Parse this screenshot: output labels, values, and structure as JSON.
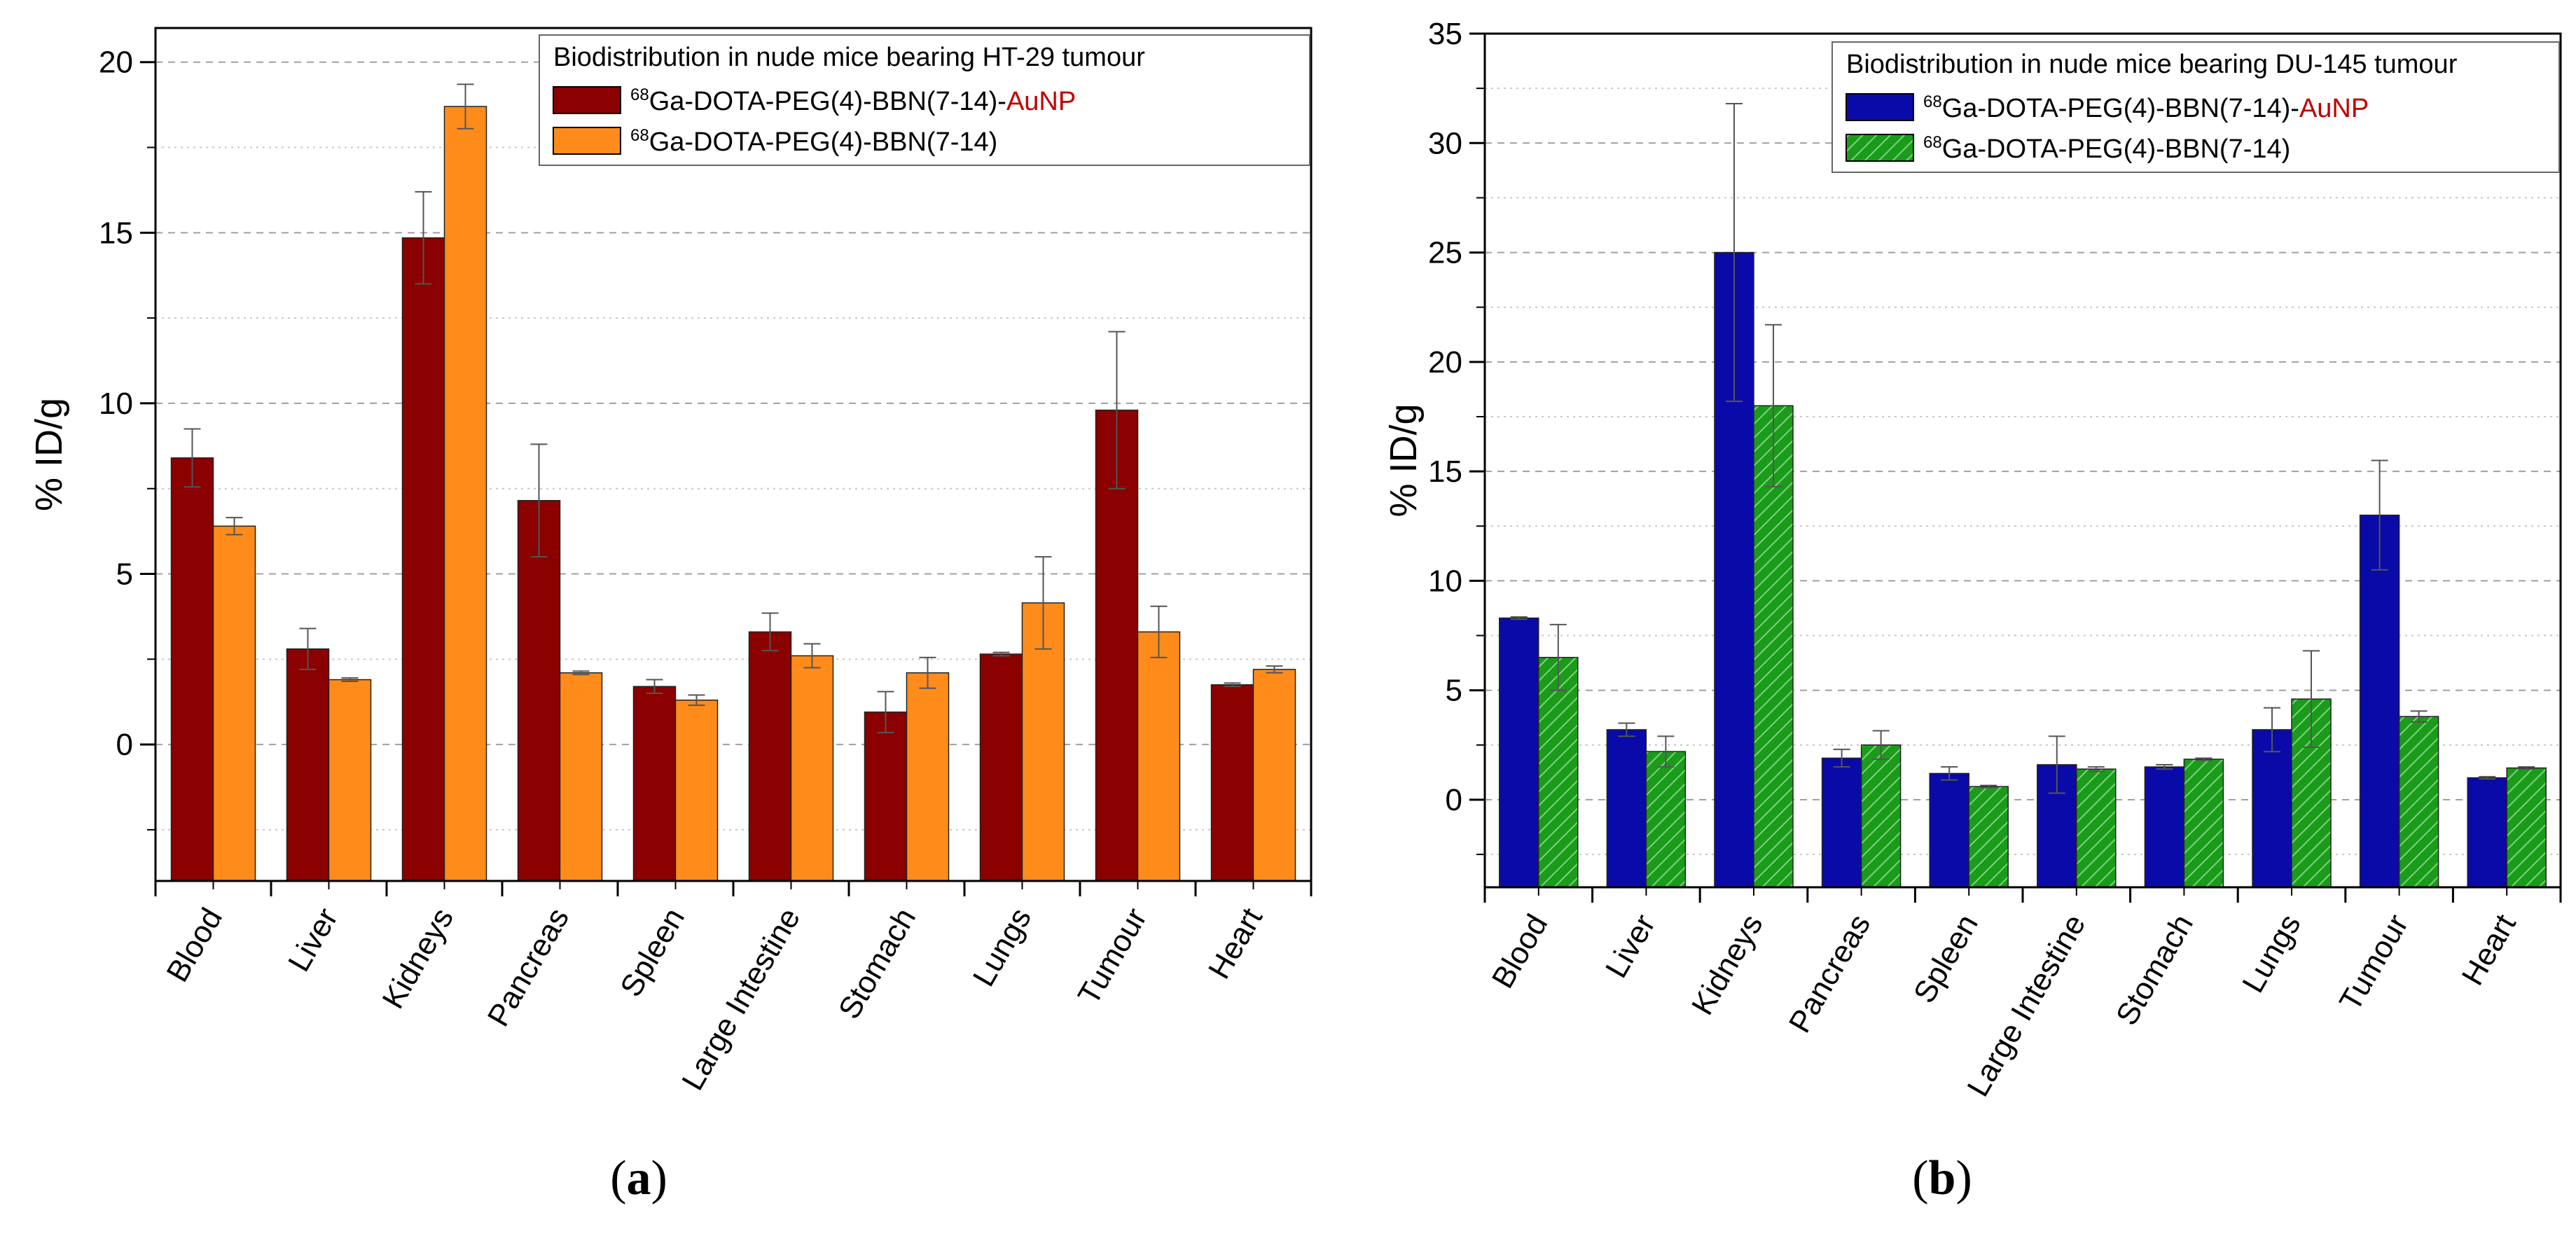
{
  "chart_data": [
    {
      "type": "bar",
      "panel_label": "a",
      "title": "Biodistribution in nude mice bearing HT-29 tumour",
      "ylabel": "% ID/g",
      "xlabel": "",
      "ylim": [
        -4,
        21
      ],
      "yticks": [
        0,
        5,
        10,
        15,
        20
      ],
      "minor_step": 2.5,
      "grid": "dashed-horizontal",
      "legend_position": "top-right",
      "categories": [
        "Blood",
        "Liver",
        "Kidneys",
        "Pancreas",
        "Spleen",
        "Large Intestine",
        "Stomach",
        "Lungs",
        "Tumour",
        "Heart"
      ],
      "series": [
        {
          "name": "Ga-DOTA-PEG(4)-BBN(7-14)-",
          "name_sup": "68",
          "name_suffix": "AuNP",
          "suffix_color": "#c00000",
          "color": "#8b0000",
          "pattern": "solid",
          "values": [
            8.4,
            2.8,
            14.85,
            7.15,
            1.7,
            3.3,
            0.95,
            2.65,
            9.8,
            1.75
          ],
          "errors": [
            0.85,
            0.6,
            1.35,
            1.65,
            0.2,
            0.55,
            0.6,
            0.05,
            2.3,
            0.05
          ]
        },
        {
          "name": "Ga-DOTA-PEG(4)-BBN(7-14)",
          "name_sup": "68",
          "name_suffix": "",
          "suffix_color": "#000000",
          "color": "#ff8c1a",
          "pattern": "solid",
          "values": [
            6.4,
            1.9,
            18.7,
            2.1,
            1.3,
            2.6,
            2.1,
            4.15,
            3.3,
            2.2
          ],
          "errors": [
            0.25,
            0.05,
            0.65,
            0.05,
            0.15,
            0.35,
            0.45,
            1.35,
            0.75,
            0.1
          ]
        }
      ]
    },
    {
      "type": "bar",
      "panel_label": "b",
      "title": "Biodistribution in nude mice bearing DU-145 tumour",
      "ylabel": "% ID/g",
      "xlabel": "",
      "ylim": [
        -4,
        35
      ],
      "yticks": [
        0,
        5,
        10,
        15,
        20,
        25,
        30,
        35
      ],
      "minor_step": 2.5,
      "grid": "dashed-horizontal",
      "legend_position": "top-right",
      "categories": [
        "Blood",
        "Liver",
        "Kidneys",
        "Pancreas",
        "Spleen",
        "Large Intestine",
        "Stomach",
        "Lungs",
        "Tumour",
        "Heart"
      ],
      "series": [
        {
          "name": "Ga-DOTA-PEG(4)-BBN(7-14)-",
          "name_sup": "68",
          "name_suffix": "AuNP",
          "suffix_color": "#c00000",
          "color": "#0a0aa8",
          "pattern": "solid",
          "values": [
            8.3,
            3.2,
            25.0,
            1.9,
            1.2,
            1.6,
            1.5,
            3.2,
            13.0,
            1.0
          ],
          "errors": [
            0.05,
            0.3,
            6.8,
            0.4,
            0.3,
            1.3,
            0.1,
            1.0,
            2.5,
            0.05
          ]
        },
        {
          "name": "Ga-DOTA-PEG(4)-BBN(7-14)",
          "name_sup": "68",
          "name_suffix": "",
          "suffix_color": "#000000",
          "color": "#1a9c1a",
          "pattern": "hatch",
          "values": [
            6.5,
            2.2,
            18.0,
            2.5,
            0.6,
            1.4,
            1.85,
            4.6,
            3.8,
            1.45
          ],
          "errors": [
            1.5,
            0.7,
            3.7,
            0.65,
            0.05,
            0.1,
            0.05,
            2.2,
            0.25,
            0.05
          ]
        }
      ]
    }
  ]
}
